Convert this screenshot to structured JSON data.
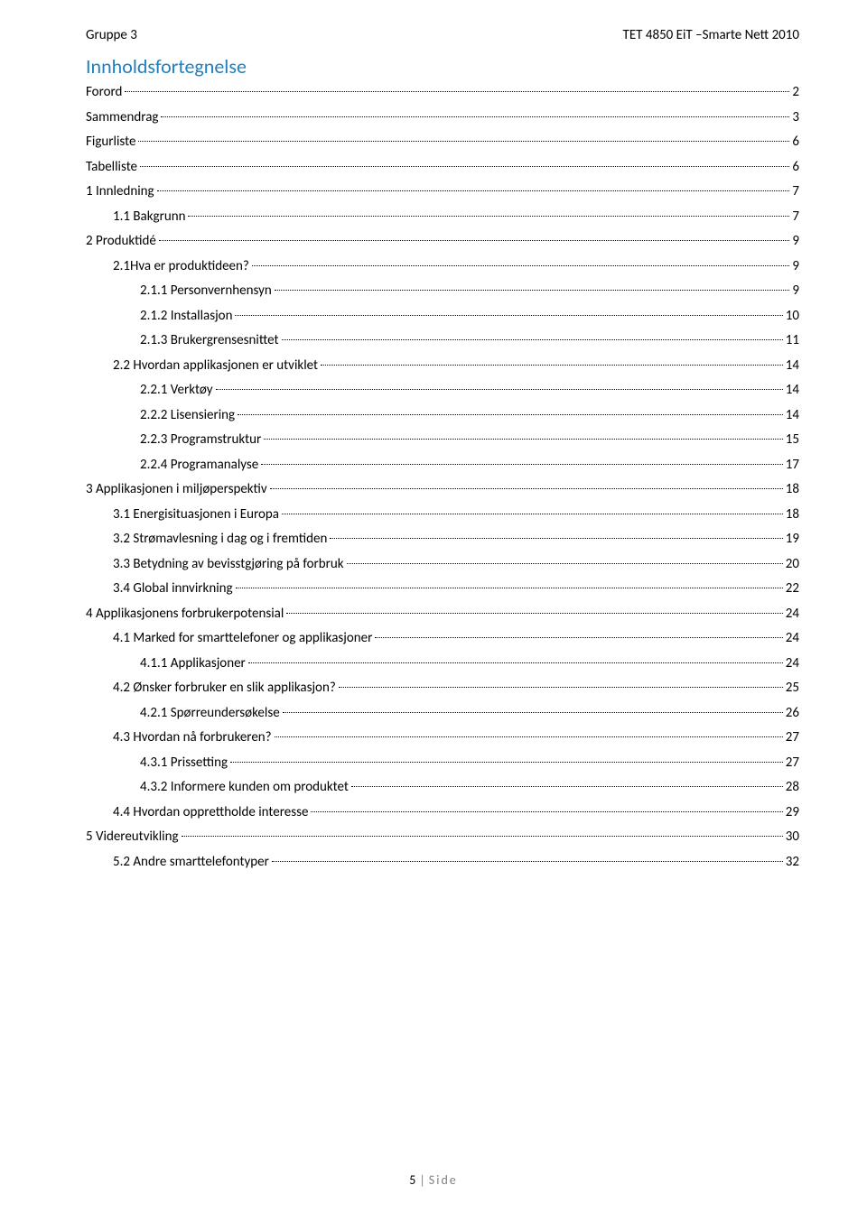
{
  "header": {
    "left": "Gruppe 3",
    "right": "TET 4850 EiT –Smarte Nett 2010"
  },
  "title": "Innholdsfortegnelse",
  "entries": [
    {
      "label": "Forord",
      "page": "2",
      "indent": 0
    },
    {
      "label": "Sammendrag",
      "page": "3",
      "indent": 0
    },
    {
      "label": "Figurliste",
      "page": "6",
      "indent": 0
    },
    {
      "label": "Tabelliste",
      "page": "6",
      "indent": 0
    },
    {
      "label": "1 Innledning",
      "page": "7",
      "indent": 0
    },
    {
      "label": "1.1 Bakgrunn",
      "page": "7",
      "indent": 1
    },
    {
      "label": "2 Produktidé",
      "page": "9",
      "indent": 0
    },
    {
      "label": "2.1Hva er produktideen?",
      "page": "9",
      "indent": 1
    },
    {
      "label": "2.1.1 Personvernhensyn",
      "page": "9",
      "indent": 2
    },
    {
      "label": "2.1.2 Installasjon",
      "page": "10",
      "indent": 2
    },
    {
      "label": "2.1.3 Brukergrensesnittet",
      "page": "11",
      "indent": 2
    },
    {
      "label": "2.2 Hvordan applikasjonen er utviklet",
      "page": "14",
      "indent": 1
    },
    {
      "label": "2.2.1 Verktøy",
      "page": "14",
      "indent": 2
    },
    {
      "label": "2.2.2 Lisensiering",
      "page": "14",
      "indent": 2
    },
    {
      "label": "2.2.3 Programstruktur",
      "page": "15",
      "indent": 2
    },
    {
      "label": "2.2.4 Programanalyse",
      "page": "17",
      "indent": 2
    },
    {
      "label": "3 Applikasjonen i miljøperspektiv",
      "page": "18",
      "indent": 0
    },
    {
      "label": "3.1 Energisituasjonen i Europa",
      "page": "18",
      "indent": 1
    },
    {
      "label": "3.2 Strømavlesning i dag og i fremtiden",
      "page": "19",
      "indent": 1
    },
    {
      "label": "3.3 Betydning av bevisstgjøring på forbruk",
      "page": "20",
      "indent": 1
    },
    {
      "label": "3.4 Global innvirkning",
      "page": "22",
      "indent": 1
    },
    {
      "label": "4 Applikasjonens forbrukerpotensial",
      "page": "24",
      "indent": 0
    },
    {
      "label": "4.1 Marked for smarttelefoner og applikasjoner",
      "page": "24",
      "indent": 1
    },
    {
      "label": "4.1.1 Applikasjoner",
      "page": "24",
      "indent": 2
    },
    {
      "label": "4.2 Ønsker forbruker en slik applikasjon?",
      "page": "25",
      "indent": 1
    },
    {
      "label": "4.2.1 Spørreundersøkelse",
      "page": "26",
      "indent": 2
    },
    {
      "label": "4.3 Hvordan nå forbrukeren?",
      "page": "27",
      "indent": 1
    },
    {
      "label": "4.3.1 Prissetting",
      "page": "27",
      "indent": 2
    },
    {
      "label": "4.3.2 Informere kunden om produktet",
      "page": "28",
      "indent": 2
    },
    {
      "label": "4.4 Hvordan opprettholde interesse",
      "page": "29",
      "indent": 1
    },
    {
      "label": "5 Videreutvikling",
      "page": "30",
      "indent": 0
    },
    {
      "label": "5.2 Andre smarttelefontyper",
      "page": "32",
      "indent": 1
    }
  ],
  "footer": {
    "pageNum": "5",
    "sep": "|",
    "label": "Side"
  }
}
